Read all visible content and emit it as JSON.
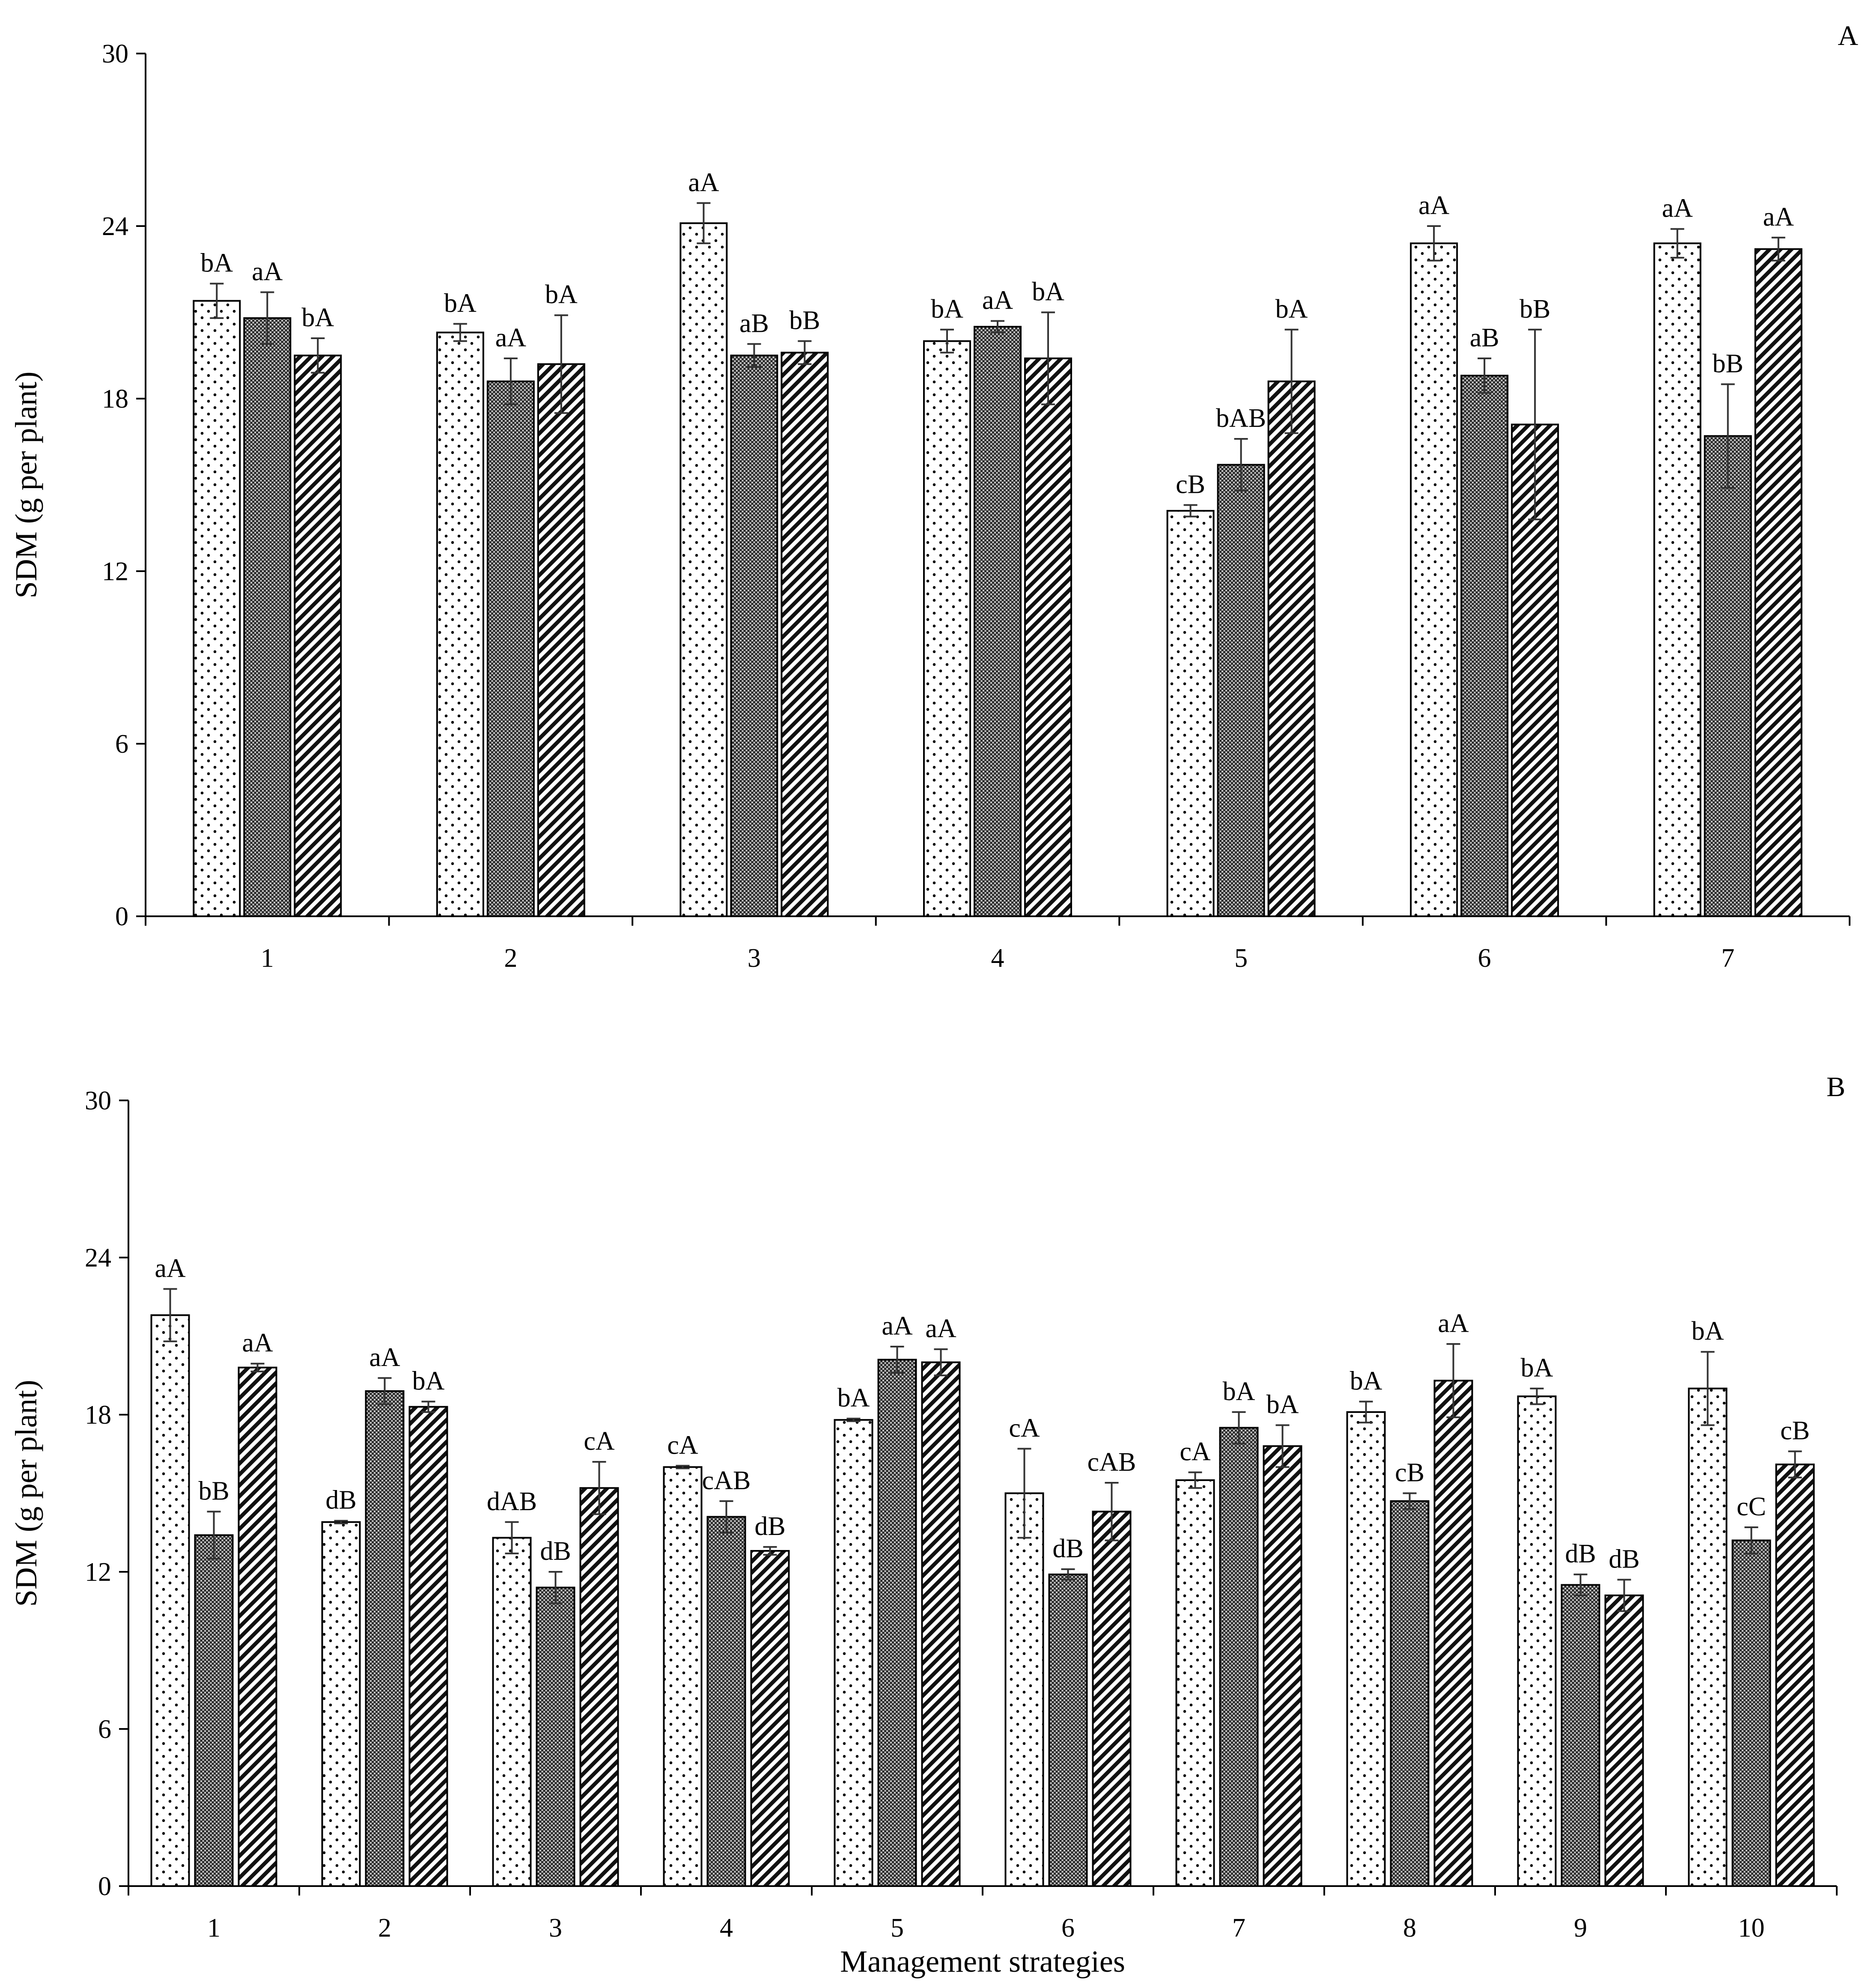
{
  "chart_data": [
    {
      "type": "bar",
      "panel_label": "A",
      "ylabel": "SDM (g per plant)",
      "xlabel": "",
      "ylim": [
        0,
        30
      ],
      "yticks": [
        0,
        6,
        12,
        18,
        24,
        30
      ],
      "grid": false,
      "categories": [
        "1",
        "2",
        "3",
        "4",
        "5",
        "6",
        "7"
      ],
      "series": [
        {
          "fill": "dots",
          "values": [
            21.4,
            20.3,
            24.1,
            20.0,
            14.1,
            23.4,
            23.4
          ],
          "errors": [
            0.6,
            0.3,
            0.7,
            0.4,
            0.2,
            0.6,
            0.5
          ],
          "labels": [
            "bA",
            "bA",
            "aA",
            "bA",
            "cB",
            "aA",
            "aA"
          ]
        },
        {
          "fill": "dark-dense",
          "values": [
            20.8,
            18.6,
            19.5,
            20.5,
            15.7,
            18.8,
            16.7
          ],
          "errors": [
            0.9,
            0.8,
            0.4,
            0.2,
            0.9,
            0.6,
            1.8
          ],
          "labels": [
            "aA",
            "aA",
            "aB",
            "aA",
            "bAB",
            "aB",
            "bB"
          ]
        },
        {
          "fill": "diagonal-hatch",
          "values": [
            19.5,
            19.2,
            19.6,
            19.4,
            18.6,
            17.1,
            23.2
          ],
          "errors": [
            0.6,
            1.7,
            0.4,
            1.6,
            1.8,
            3.3,
            0.4
          ],
          "labels": [
            "bA",
            "bA",
            "bB",
            "bA",
            "bA",
            "bB",
            "aA"
          ]
        }
      ]
    },
    {
      "type": "bar",
      "panel_label": "B",
      "ylabel": "SDM (g per plant)",
      "xlabel": "Management strategies",
      "ylim": [
        0,
        30
      ],
      "yticks": [
        0,
        6,
        12,
        18,
        24,
        30
      ],
      "grid": false,
      "categories": [
        "1",
        "2",
        "3",
        "4",
        "5",
        "6",
        "7",
        "8",
        "9",
        "10"
      ],
      "series": [
        {
          "fill": "dots",
          "values": [
            21.8,
            13.9,
            13.3,
            16.0,
            17.8,
            15.0,
            15.5,
            18.1,
            18.7,
            19.0
          ],
          "errors": [
            1.0,
            0.05,
            0.6,
            0.05,
            0.05,
            1.7,
            0.3,
            0.4,
            0.3,
            1.4
          ],
          "labels": [
            "aA",
            "dB",
            "dAB",
            "cA",
            "bA",
            "cA",
            "cA",
            "bA",
            "bA",
            "bA"
          ]
        },
        {
          "fill": "dark-dense",
          "values": [
            13.4,
            18.9,
            11.4,
            14.1,
            20.1,
            11.9,
            17.5,
            14.7,
            11.5,
            13.2
          ],
          "errors": [
            0.9,
            0.5,
            0.6,
            0.6,
            0.5,
            0.2,
            0.6,
            0.3,
            0.4,
            0.5
          ],
          "labels": [
            "bB",
            "aA",
            "dB",
            "cAB",
            "aA",
            "dB",
            "bA",
            "cB",
            "dB",
            "cC"
          ]
        },
        {
          "fill": "diagonal-hatch",
          "values": [
            19.8,
            18.3,
            15.2,
            12.8,
            20.0,
            14.3,
            16.8,
            19.3,
            11.1,
            16.1
          ],
          "errors": [
            0.15,
            0.2,
            1.0,
            0.15,
            0.5,
            1.1,
            0.8,
            1.4,
            0.6,
            0.5
          ],
          "labels": [
            "aA",
            "bA",
            "cA",
            "dB",
            "aA",
            "cAB",
            "bA",
            "aA",
            "dB",
            "cB"
          ]
        }
      ]
    }
  ]
}
